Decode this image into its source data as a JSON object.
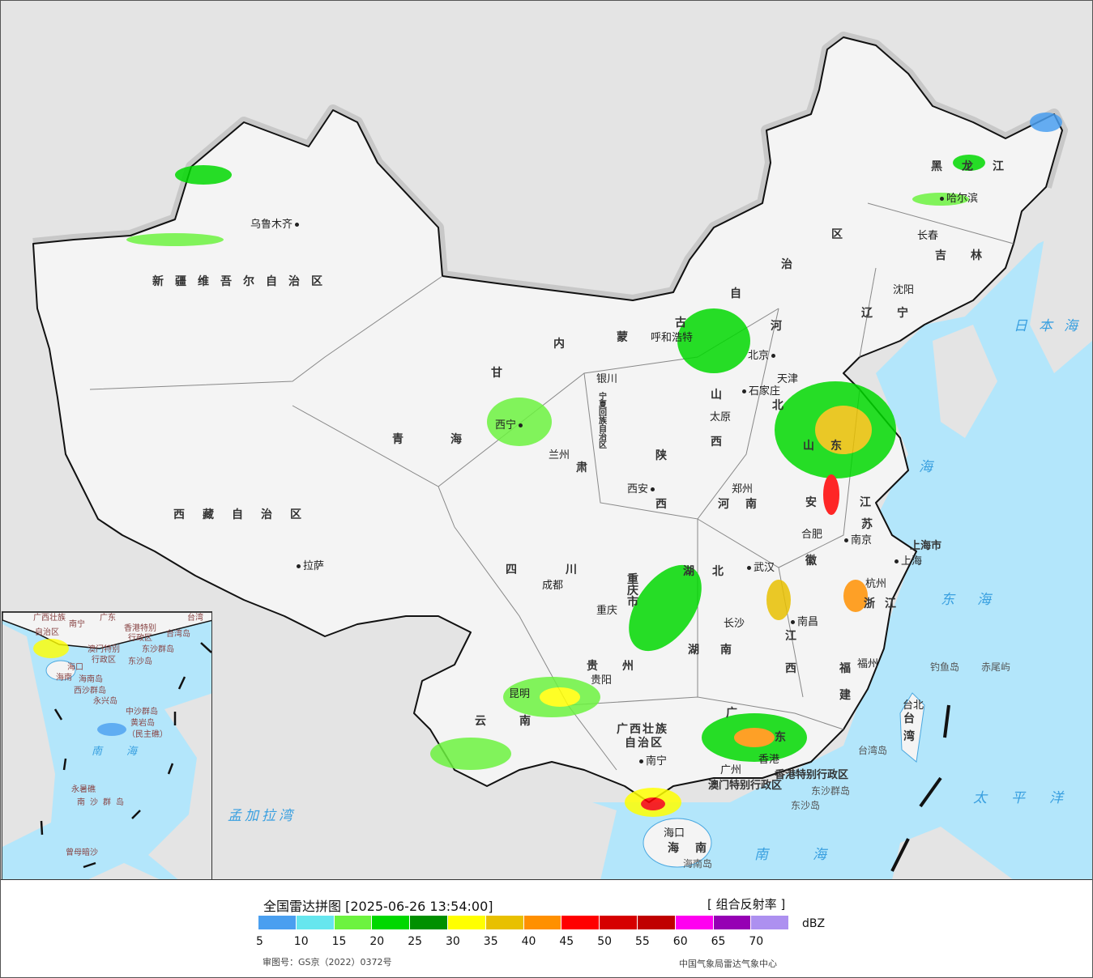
{
  "legend": {
    "title": "全国雷达拼图 [2025-06-26 13:54:00]",
    "product": "[ 组合反射率 ]",
    "unit": "dBZ",
    "ticks": [
      "5",
      "10",
      "15",
      "20",
      "25",
      "30",
      "35",
      "40",
      "45",
      "50",
      "55",
      "60",
      "65",
      "70"
    ],
    "colors": [
      "#4a9ff0",
      "#66e6ee",
      "#6cf33f",
      "#00d800",
      "#009000",
      "#ffff00",
      "#e8c000",
      "#ff9000",
      "#ff0000",
      "#d60000",
      "#c00000",
      "#ff00f0",
      "#9600b4",
      "#ad90f0"
    ],
    "approval": "审图号：GS京（2022）0372号",
    "agency": "中国气象局雷达气象中心"
  },
  "colors": {
    "sea": "#b3e6fb",
    "land_outside": "#e4e4e4",
    "china_land": "#f4f4f4",
    "border": "#111111"
  },
  "cities": [
    "乌鲁木齐",
    "拉萨",
    "西宁",
    "兰州",
    "银川",
    "成都",
    "重庆",
    "昆明",
    "贵阳",
    "南宁",
    "西安",
    "太原",
    "呼和浩特",
    "北京",
    "天津",
    "石家庄",
    "郑州",
    "武汉",
    "长沙",
    "南昌",
    "合肥",
    "南京",
    "上海",
    "杭州",
    "福州",
    "台北",
    "海口",
    "沈阳",
    "长春",
    "哈尔滨",
    "广州",
    "香港"
  ],
  "provinces": {
    "xinjiang": "新疆维吾尔自治区",
    "xizang": "西藏自治区",
    "qinghai": "青海",
    "neimenggu": [
      "内",
      "蒙",
      "古",
      "自",
      "治",
      "区"
    ],
    "heilongjiang": "黑龙江",
    "jilin": "吉林",
    "liaoning": "辽宁",
    "hebei": [
      "河",
      "北"
    ],
    "shanxi": [
      "山",
      "西"
    ],
    "shaanxi": [
      "陕",
      "西"
    ],
    "henan": "河南",
    "shandong": "山东",
    "jiangsu": [
      "江",
      "苏"
    ],
    "anhui": [
      "安",
      "徽"
    ],
    "zhejiang": "浙江",
    "jiangxi": [
      "江",
      "西"
    ],
    "fujian": [
      "福",
      "建"
    ],
    "hubei": "湖北",
    "hunan": [
      "湖",
      "南"
    ],
    "sichuan": [
      "四",
      "川"
    ],
    "guizhou": "贵州",
    "yunnan": [
      "云",
      "南"
    ],
    "guangxi": [
      "广西壮族",
      "自治区"
    ],
    "guangdong": [
      "广",
      "东"
    ],
    "ningxia": "宁夏回族自治区",
    "gansu": [
      "甘",
      "肃"
    ],
    "chongqing": "重庆市",
    "hainan": "海南",
    "taiwan": [
      "台",
      "湾"
    ],
    "shanghai": "上海市",
    "hongkong": "香港特别行政区",
    "macau": "澳门特别行政区"
  },
  "seas": {
    "japan": "日本海",
    "east": "东海",
    "pacific": "太平洋",
    "south": "南海",
    "bengal": "孟加拉湾",
    "yellow": "海"
  },
  "islands": {
    "taiwan_island": "台湾岛",
    "diaoyu": "钓鱼岛",
    "chiwei": "赤尾屿",
    "dongsha_qundao": "东沙群岛",
    "dongsha": "东沙岛",
    "hainan_island": "海南岛"
  },
  "inset": {
    "labels": [
      "广西壮族",
      "自治区",
      "南宁",
      "广东",
      "香港特别",
      "行政区",
      "台湾",
      "澳门特别",
      "行政区",
      "台湾岛",
      "东沙群岛",
      "东沙岛",
      "海口",
      "海南",
      "海南岛",
      "西沙群岛",
      "永兴岛",
      "中沙群岛",
      "黄岩岛",
      "（民主礁）",
      "南海",
      "永暑礁",
      "南沙群岛",
      "曾母暗沙"
    ]
  }
}
